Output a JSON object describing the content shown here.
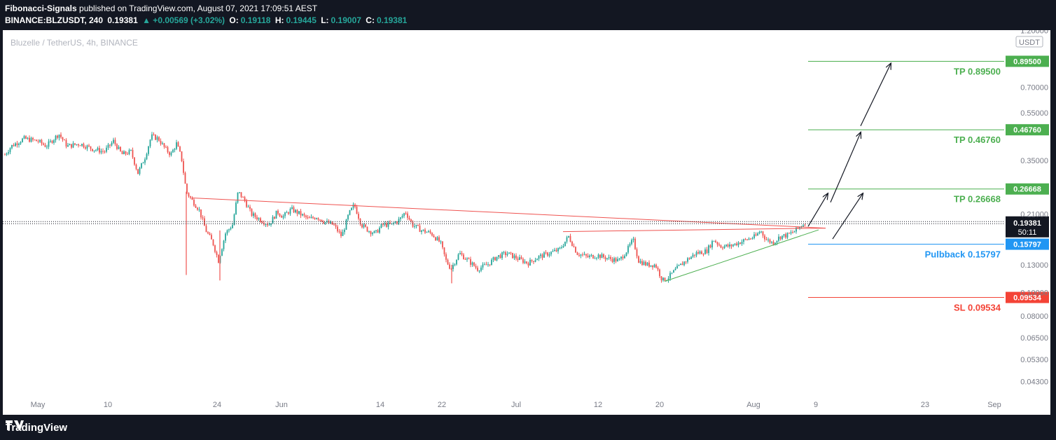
{
  "header": {
    "author": "Fibonacci-Signals",
    "published": "published on TradingView.com, August 07, 2021 17:09:51 AEST",
    "symbol": "BINANCE:BLZUSDT, 240",
    "last": "0.19381",
    "change": "▲ +0.00569 (+3.02%)",
    "o_label": "O:",
    "o": "0.19118",
    "h_label": "H:",
    "h": "0.19445",
    "l_label": "L:",
    "l": "0.19007",
    "c_label": "C:",
    "c": "0.19381"
  },
  "footer": {
    "brand": "TradingView"
  },
  "chart_data": {
    "type": "candlestick",
    "title": "Bluzelle / TetherUS, 4h, BINANCE",
    "currency": "USDT",
    "y_scale": "log",
    "ylim": [
      0.038,
      1.2
    ],
    "x_ticks": [
      "May",
      "10",
      "24",
      "Jun",
      "14",
      "22",
      "Jul",
      "12",
      "20",
      "Aug",
      "9",
      "23",
      "Sep"
    ],
    "y_ticks": [
      "1.20000",
      "0.70000",
      "0.55000",
      "0.35000",
      "0.21000",
      "0.13000",
      "0.10000",
      "0.08000",
      "0.06500",
      "0.05300",
      "0.04300"
    ],
    "current": {
      "price": "0.19381",
      "countdown": "50:11",
      "value": 0.19381
    },
    "levels": [
      {
        "label": "TP 0.89500",
        "tag": "0.89500",
        "value": 0.895,
        "color": "#4caf50"
      },
      {
        "label": "TP 0.46760",
        "tag": "0.46760",
        "value": 0.4676,
        "color": "#4caf50"
      },
      {
        "label": "TP 0.26668",
        "tag": "0.26668",
        "value": 0.26668,
        "color": "#4caf50"
      },
      {
        "label": "Pulbback 0.15797",
        "tag": "0.15797",
        "value": 0.15797,
        "color": "#2196f3"
      },
      {
        "label": "SL 0.09534",
        "tag": "0.09534",
        "value": 0.09534,
        "color": "#f44336"
      }
    ],
    "price_path": [
      [
        0,
        0.36
      ],
      [
        12,
        0.4
      ],
      [
        30,
        0.43
      ],
      [
        50,
        0.42
      ],
      [
        62,
        0.4
      ],
      [
        80,
        0.45
      ],
      [
        92,
        0.4
      ],
      [
        110,
        0.41
      ],
      [
        128,
        0.39
      ],
      [
        145,
        0.38
      ],
      [
        158,
        0.42
      ],
      [
        170,
        0.37
      ],
      [
        183,
        0.38
      ],
      [
        193,
        0.31
      ],
      [
        203,
        0.36
      ],
      [
        212,
        0.44
      ],
      [
        222,
        0.43
      ],
      [
        232,
        0.39
      ],
      [
        240,
        0.37
      ],
      [
        248,
        0.41
      ],
      [
        255,
        0.36
      ],
      [
        262,
        0.26
      ],
      [
        270,
        0.24
      ],
      [
        280,
        0.22
      ],
      [
        290,
        0.18
      ],
      [
        300,
        0.16
      ],
      [
        308,
        0.135
      ],
      [
        318,
        0.175
      ],
      [
        328,
        0.19
      ],
      [
        336,
        0.26
      ],
      [
        345,
        0.24
      ],
      [
        355,
        0.21
      ],
      [
        367,
        0.2
      ],
      [
        380,
        0.19
      ],
      [
        392,
        0.215
      ],
      [
        400,
        0.205
      ],
      [
        412,
        0.22
      ],
      [
        425,
        0.21
      ],
      [
        437,
        0.2
      ],
      [
        448,
        0.205
      ],
      [
        460,
        0.195
      ],
      [
        472,
        0.19
      ],
      [
        484,
        0.17
      ],
      [
        494,
        0.21
      ],
      [
        502,
        0.23
      ],
      [
        512,
        0.19
      ],
      [
        522,
        0.18
      ],
      [
        532,
        0.175
      ],
      [
        542,
        0.19
      ],
      [
        555,
        0.19
      ],
      [
        567,
        0.2
      ],
      [
        575,
        0.215
      ],
      [
        585,
        0.19
      ],
      [
        598,
        0.18
      ],
      [
        612,
        0.175
      ],
      [
        625,
        0.16
      ],
      [
        633,
        0.135
      ],
      [
        640,
        0.125
      ],
      [
        652,
        0.145
      ],
      [
        665,
        0.135
      ],
      [
        678,
        0.125
      ],
      [
        692,
        0.13
      ],
      [
        705,
        0.14
      ],
      [
        720,
        0.145
      ],
      [
        735,
        0.138
      ],
      [
        750,
        0.132
      ],
      [
        765,
        0.14
      ],
      [
        780,
        0.145
      ],
      [
        795,
        0.15
      ],
      [
        808,
        0.17
      ],
      [
        820,
        0.145
      ],
      [
        835,
        0.14
      ],
      [
        850,
        0.142
      ],
      [
        865,
        0.138
      ],
      [
        880,
        0.135
      ],
      [
        892,
        0.15
      ],
      [
        900,
        0.165
      ],
      [
        908,
        0.135
      ],
      [
        920,
        0.13
      ],
      [
        932,
        0.13
      ],
      [
        942,
        0.112
      ],
      [
        950,
        0.115
      ],
      [
        962,
        0.125
      ],
      [
        975,
        0.135
      ],
      [
        990,
        0.145
      ],
      [
        1005,
        0.148
      ],
      [
        1015,
        0.165
      ],
      [
        1025,
        0.155
      ],
      [
        1038,
        0.155
      ],
      [
        1050,
        0.16
      ],
      [
        1062,
        0.165
      ],
      [
        1075,
        0.17
      ],
      [
        1082,
        0.18
      ],
      [
        1090,
        0.165
      ],
      [
        1100,
        0.16
      ],
      [
        1110,
        0.17
      ],
      [
        1120,
        0.172
      ],
      [
        1130,
        0.178
      ],
      [
        1140,
        0.188
      ],
      [
        1146,
        0.19381
      ]
    ],
    "spikes": [
      [
        262,
        0.118,
        0.26
      ],
      [
        310,
        0.112,
        0.18
      ],
      [
        641,
        0.109,
        0.13
      ]
    ],
    "lines": [
      {
        "kind": "resistance",
        "color": "#ef5350",
        "points": [
          [
            270,
            0.245
          ],
          [
            1175,
            0.184
          ]
        ]
      },
      {
        "kind": "flat",
        "color": "#ef5350",
        "points": [
          [
            800,
            0.178
          ],
          [
            1175,
            0.184
          ]
        ]
      },
      {
        "kind": "support",
        "color": "#4caf50",
        "points": [
          [
            945,
            0.111
          ],
          [
            1165,
            0.181
          ]
        ]
      }
    ],
    "arrows": [
      [
        [
          1150,
          0.187
        ],
        [
          1178,
          0.255
        ]
      ],
      [
        [
          1182,
          0.235
        ],
        [
          1225,
          0.455
        ]
      ],
      [
        [
          1225,
          0.485
        ],
        [
          1268,
          0.875
        ]
      ],
      [
        [
          1185,
          0.166
        ],
        [
          1228,
          0.255
        ]
      ]
    ]
  }
}
